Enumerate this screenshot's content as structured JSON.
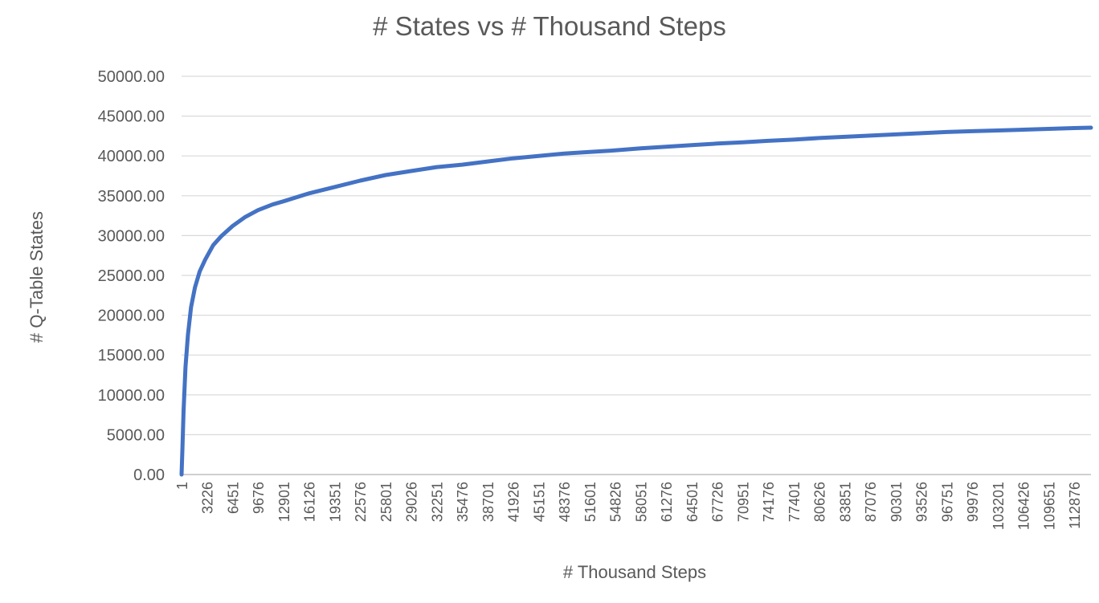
{
  "chart_data": {
    "type": "line",
    "title": "# States vs # Thousand Steps",
    "xlabel": "# Thousand Steps",
    "ylabel": "# Q-Table States",
    "ylim": [
      0,
      50000
    ],
    "xlim": [
      1,
      115000
    ],
    "yticks": [
      "0.00",
      "5000.00",
      "10000.00",
      "15000.00",
      "20000.00",
      "25000.00",
      "30000.00",
      "35000.00",
      "40000.00",
      "45000.00",
      "50000.00"
    ],
    "xticks": [
      "1",
      "3226",
      "6451",
      "9676",
      "12901",
      "16126",
      "19351",
      "22576",
      "25801",
      "29026",
      "32251",
      "35476",
      "38701",
      "41926",
      "45151",
      "48376",
      "51601",
      "54826",
      "58051",
      "61276",
      "64501",
      "67726",
      "70951",
      "74176",
      "77401",
      "80626",
      "83851",
      "87076",
      "90301",
      "93526",
      "96751",
      "99976",
      "103201",
      "106426",
      "109651",
      "112876"
    ],
    "grid": "horizontal",
    "legend": "none",
    "line_color": "#4472C4",
    "series": [
      {
        "x": [
          1,
          100,
          250,
          500,
          800,
          1200,
          1700,
          2300,
          3000,
          4000,
          5000,
          6451,
          8000,
          9676,
          11500,
          12901,
          16126,
          19351,
          22576,
          25801,
          29026,
          32251,
          35476,
          38701,
          41926,
          45151,
          48376,
          51601,
          54826,
          58051,
          61276,
          64501,
          67726,
          70951,
          74176,
          77401,
          80626,
          83851,
          87076,
          90301,
          93526,
          96751,
          99976,
          103201,
          106426,
          109651,
          112876,
          115000
        ],
        "y": [
          0,
          3000,
          8000,
          13500,
          17500,
          21000,
          23500,
          25500,
          27000,
          28800,
          29900,
          31200,
          32300,
          33200,
          33900,
          34300,
          35300,
          36100,
          36900,
          37600,
          38100,
          38600,
          38900,
          39300,
          39700,
          40000,
          40300,
          40500,
          40700,
          40950,
          41150,
          41350,
          41550,
          41700,
          41900,
          42050,
          42250,
          42400,
          42550,
          42700,
          42850,
          43000,
          43100,
          43200,
          43300,
          43400,
          43500,
          43550
        ]
      }
    ]
  }
}
